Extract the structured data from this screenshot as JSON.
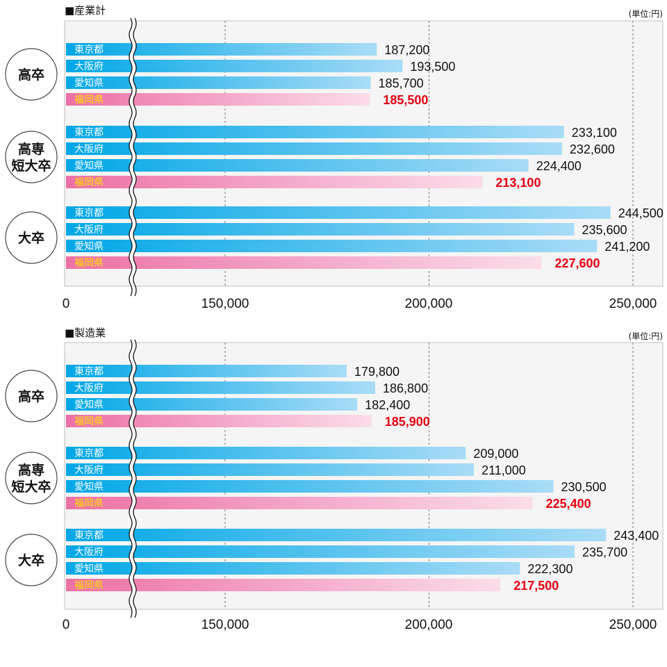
{
  "colors": {
    "blue_start": "#00a7e6",
    "blue_end": "#a9dcf6",
    "pink_start": "#ec70a6",
    "pink_end": "#fbdde9",
    "highlight_value": "#e60012",
    "highlight_label": "#ffe100",
    "label_on_blue": "#ffffff",
    "plot_bg": "#f4f5f4",
    "grid": "#777777"
  },
  "chart_data": [
    {
      "type": "bar",
      "orientation": "horizontal",
      "title": "■産業計",
      "unit": "(単位:円)",
      "x_ticks": [
        "0",
        "150,000",
        "200,000",
        "250,000"
      ],
      "axis_break": "between 0 and 150,000",
      "xlim": [
        110000,
        257000
      ],
      "series_labels": [
        "東京都",
        "大阪府",
        "愛知県",
        "福岡県"
      ],
      "highlight_series": "福岡県",
      "groups": [
        {
          "label": "高卒",
          "values": [
            187200,
            193500,
            185700,
            185500
          ],
          "value_labels": [
            "187,200",
            "193,500",
            "185,700",
            "185,500"
          ]
        },
        {
          "label": "高専短大卒",
          "label_lines": [
            "高専",
            "短大卒"
          ],
          "values": [
            233100,
            232600,
            224400,
            213100
          ],
          "value_labels": [
            "233,100",
            "232,600",
            "224,400",
            "213,100"
          ]
        },
        {
          "label": "大卒",
          "values": [
            244500,
            235600,
            241200,
            227600
          ],
          "value_labels": [
            "244,500",
            "235,600",
            "241,200",
            "227,600"
          ]
        }
      ]
    },
    {
      "type": "bar",
      "orientation": "horizontal",
      "title": "■製造業",
      "unit": "(単位:円)",
      "x_ticks": [
        "0",
        "150,000",
        "200,000",
        "250,000"
      ],
      "axis_break": "between 0 and 150,000",
      "xlim": [
        110000,
        257000
      ],
      "series_labels": [
        "東京都",
        "大阪府",
        "愛知県",
        "福岡県"
      ],
      "highlight_series": "福岡県",
      "groups": [
        {
          "label": "高卒",
          "values": [
            179800,
            186800,
            182400,
            185900
          ],
          "value_labels": [
            "179,800",
            "186,800",
            "182,400",
            "185,900"
          ]
        },
        {
          "label": "高専短大卒",
          "label_lines": [
            "高専",
            "短大卒"
          ],
          "values": [
            209000,
            211000,
            230500,
            225400
          ],
          "value_labels": [
            "209,000",
            "211,000",
            "230,500",
            "225,400"
          ]
        },
        {
          "label": "大卒",
          "values": [
            243400,
            235700,
            222300,
            217500
          ],
          "value_labels": [
            "243,400",
            "235,700",
            "222,300",
            "217,500"
          ]
        }
      ]
    }
  ]
}
